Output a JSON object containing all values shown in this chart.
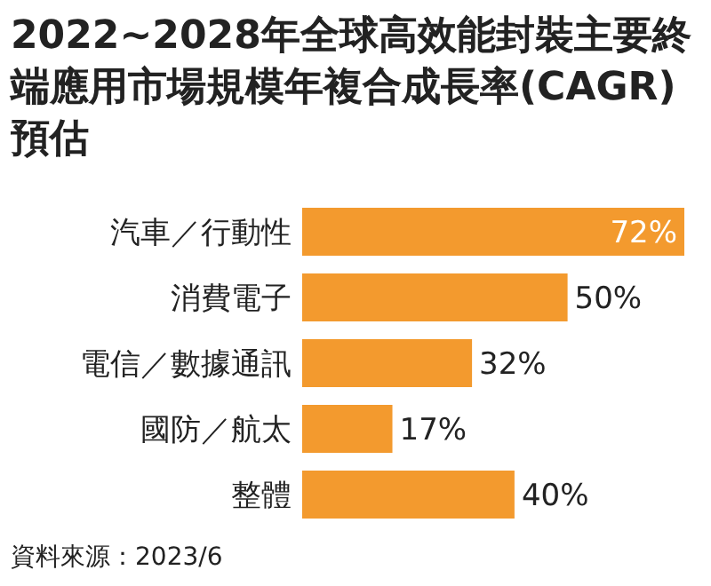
{
  "chart_data": {
    "type": "bar",
    "orientation": "horizontal",
    "title": "2022~2028年全球高效能封裝主要終端應用市場規模年複合成長率(CAGR)預估",
    "categories": [
      "汽車／行動性",
      "消費電子",
      "電信／數據通訊",
      "國防／航太",
      "整體"
    ],
    "values": [
      72,
      50,
      32,
      17,
      40
    ],
    "color": "#f39a2e",
    "value_labels": [
      "72%",
      "50%",
      "32%",
      "17%",
      "40%"
    ],
    "annotations": [
      "資料來源：2023/6"
    ]
  }
}
